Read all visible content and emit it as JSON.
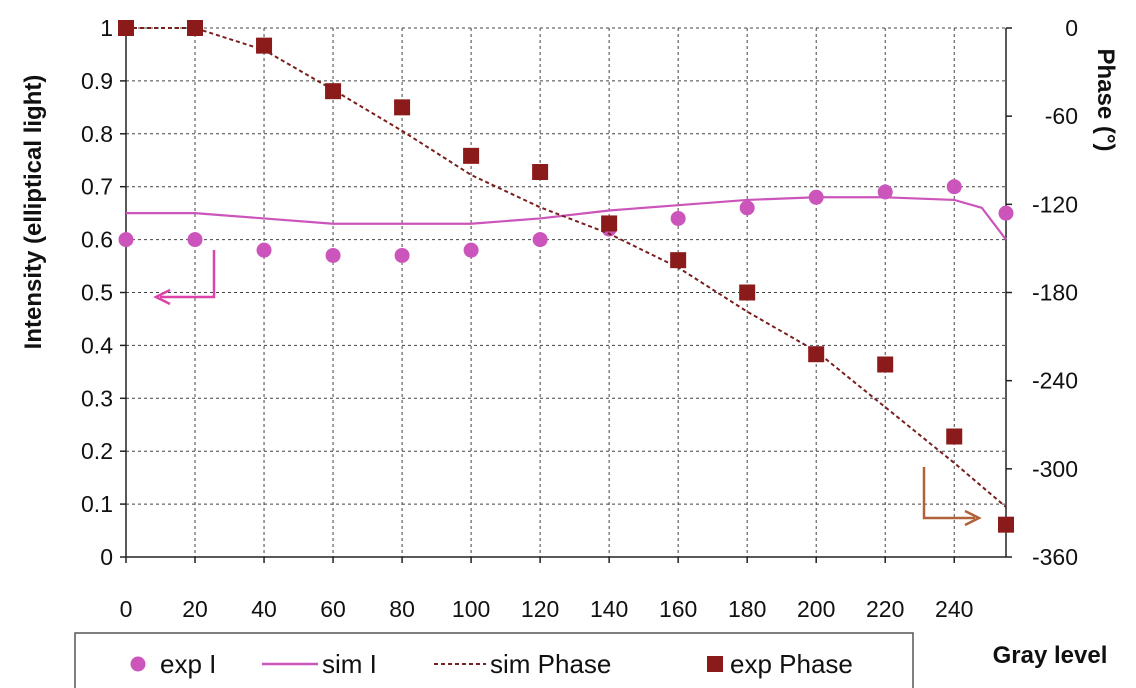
{
  "chart_data": {
    "type": "line",
    "xlabel": "Gray level",
    "ylabel": "Intensity (elliptical light)",
    "y2label": "Phase (°)",
    "xlim": [
      0,
      255
    ],
    "ylim": [
      0,
      1
    ],
    "y2lim": [
      -360,
      0
    ],
    "x_ticks": [
      0,
      20,
      40,
      60,
      80,
      100,
      120,
      140,
      160,
      180,
      200,
      220,
      240
    ],
    "y_ticks": [
      0,
      0.1,
      0.2,
      0.3,
      0.4,
      0.5,
      0.6,
      0.7,
      0.8,
      0.9,
      1
    ],
    "y2_ticks": [
      0,
      -60,
      -120,
      -180,
      -240,
      -300,
      -360
    ],
    "grid": true,
    "legend_position": "bottom",
    "series": [
      {
        "name": "exp I",
        "axis": "left",
        "style": "markers-circle",
        "color": "#cc55bb",
        "x": [
          0,
          20,
          40,
          60,
          80,
          100,
          120,
          140,
          160,
          180,
          200,
          220,
          240,
          255
        ],
        "y": [
          0.6,
          0.6,
          0.58,
          0.57,
          0.57,
          0.58,
          0.6,
          0.62,
          0.64,
          0.66,
          0.68,
          0.69,
          0.7,
          0.65
        ]
      },
      {
        "name": "sim I",
        "axis": "left",
        "style": "solid-line",
        "color": "#cc55bb",
        "x": [
          0,
          20,
          40,
          60,
          80,
          100,
          120,
          140,
          160,
          180,
          200,
          220,
          240,
          248,
          255
        ],
        "y": [
          0.65,
          0.65,
          0.64,
          0.63,
          0.63,
          0.63,
          0.64,
          0.655,
          0.665,
          0.675,
          0.68,
          0.68,
          0.675,
          0.66,
          0.6
        ]
      },
      {
        "name": "sim Phase",
        "axis": "right",
        "style": "dashed-line",
        "color": "#7a1f1f",
        "x": [
          0,
          20,
          40,
          60,
          80,
          100,
          120,
          140,
          160,
          180,
          200,
          220,
          240,
          255
        ],
        "y": [
          0,
          0,
          -15,
          -42,
          -70,
          -100,
          -122,
          -140,
          -163,
          -193,
          -220,
          -258,
          -296,
          -326
        ]
      },
      {
        "name": "exp Phase",
        "axis": "right",
        "style": "markers-square",
        "color": "#8b1a1a",
        "x": [
          0,
          20,
          40,
          60,
          80,
          100,
          120,
          140,
          160,
          180,
          200,
          220,
          240,
          255
        ],
        "y": [
          0,
          0,
          -12,
          -43,
          -54,
          -87,
          -98,
          -133,
          -158,
          -180,
          -222,
          -229,
          -278,
          -338
        ]
      }
    ],
    "annotation_colors": {
      "intensity_arrow": "#dd44aa",
      "phase_arrow": "#b0623a"
    }
  }
}
